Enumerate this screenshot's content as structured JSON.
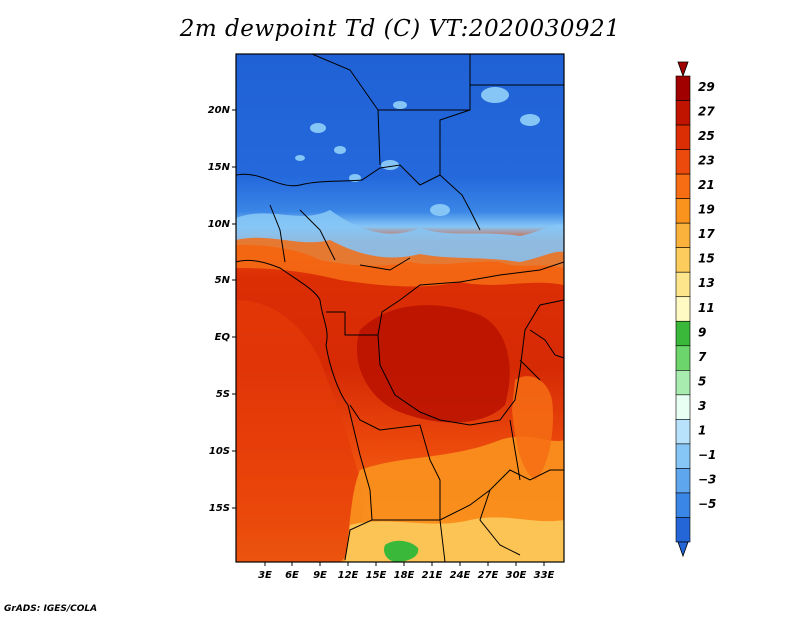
{
  "title": "2m dewpoint Td (C) VT:2020030921",
  "credit": "GrADS: IGES/COLA",
  "map": {
    "y_ticks": [
      "20N",
      "15N",
      "10N",
      "5N",
      "EQ",
      "5S",
      "10S",
      "15S"
    ],
    "x_ticks": [
      "3E",
      "6E",
      "9E",
      "12E",
      "15E",
      "18E",
      "21E",
      "24E",
      "27E",
      "30E",
      "33E"
    ]
  },
  "colorbar": {
    "labels": [
      "29",
      "27",
      "25",
      "23",
      "21",
      "19",
      "17",
      "15",
      "13",
      "11",
      "9",
      "7",
      "5",
      "3",
      "1",
      "−1",
      "−3",
      "−5"
    ],
    "colors": [
      "#a00000",
      "#c01400",
      "#dc2e05",
      "#ec4a0c",
      "#f66d14",
      "#fa921e",
      "#fbb23c",
      "#fccc5c",
      "#fde58c",
      "#fff9c4",
      "#3ab83a",
      "#6cd66c",
      "#a8ecb0",
      "#e8fff4",
      "#b8e2fc",
      "#86c6f6",
      "#5ea6ee",
      "#3a86e6",
      "#2466d8"
    ],
    "over_color": "#a00000",
    "under_color": "#2466d8"
  }
}
